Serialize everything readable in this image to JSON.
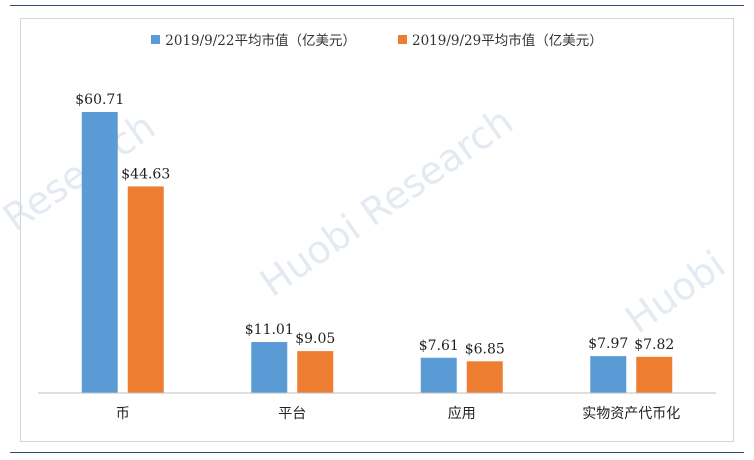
{
  "watermarks": [
    "Research",
    "Huobi Research",
    "Huobi"
  ],
  "colors": {
    "series1": "#5b9bd5",
    "series2": "#ed7d31",
    "axis": "#bfbfbf",
    "rule": "#2f4a78"
  },
  "chart_data": {
    "type": "bar",
    "categories": [
      "币",
      "平台",
      "应用",
      "实物资产代币化"
    ],
    "series": [
      {
        "name": "2019/9/22平均市值（亿美元）",
        "values": [
          60.71,
          11.01,
          7.61,
          7.97
        ],
        "labels": [
          "$60.71",
          "$11.01",
          "$7.61",
          "$7.97"
        ]
      },
      {
        "name": "2019/9/29平均市值（亿美元）",
        "values": [
          44.63,
          9.05,
          6.85,
          7.82
        ],
        "labels": [
          "$44.63",
          "$9.05",
          "$6.85",
          "$7.82"
        ]
      }
    ],
    "ylim": [
      0,
      70
    ],
    "grid": false,
    "legend": "top-center"
  }
}
